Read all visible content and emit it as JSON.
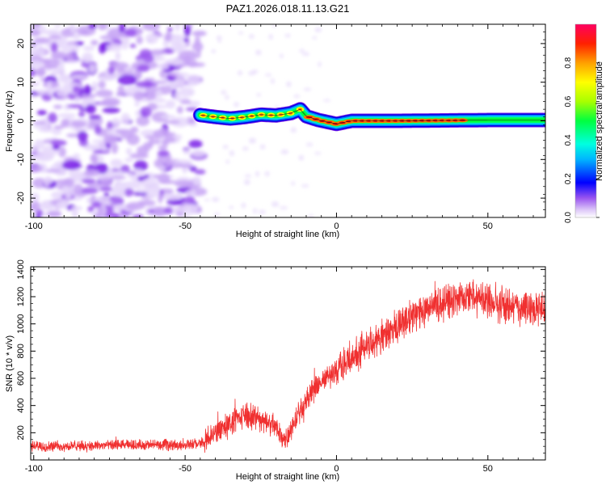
{
  "title": "PAZ1.2026.018.11.13.G21",
  "chart_data": [
    {
      "type": "heatmap",
      "name": "spectrogram",
      "xlabel": "Height of straight line (km)",
      "ylabel": "Frequency (Hz)",
      "xlim": [
        -101,
        69
      ],
      "ylim": [
        -25,
        25
      ],
      "xticks": [
        -100,
        -50,
        0,
        50
      ],
      "xtick_labels": [
        "-100",
        "-50",
        "0",
        "50"
      ],
      "yticks": [
        20,
        10,
        0,
        -10,
        -20
      ],
      "ytick_labels": [
        "20",
        "10",
        "0",
        "-10",
        "-20"
      ],
      "noise_region_x": [
        -101,
        -45
      ],
      "ridge": [
        {
          "x": -45,
          "f": 1.5
        },
        {
          "x": -40,
          "f": 1.0
        },
        {
          "x": -35,
          "f": 0.6
        },
        {
          "x": -30,
          "f": 1.0
        },
        {
          "x": -25,
          "f": 1.6
        },
        {
          "x": -20,
          "f": 1.4
        },
        {
          "x": -15,
          "f": 2.0
        },
        {
          "x": -12,
          "f": 3.0
        },
        {
          "x": -10,
          "f": 1.2
        },
        {
          "x": -6,
          "f": 0.2
        },
        {
          "x": 0,
          "f": -0.8
        },
        {
          "x": 5,
          "f": 0.0
        },
        {
          "x": 20,
          "f": 0.0
        },
        {
          "x": 50,
          "f": 0.2
        },
        {
          "x": 69,
          "f": 0.2
        }
      ],
      "colorbar": {
        "label": "Normalized spectral amplitude",
        "range": [
          0,
          1
        ],
        "ticks": [
          0.0,
          0.2,
          0.4,
          0.6,
          0.8
        ],
        "tick_labels": [
          "0.0",
          "0.2",
          "0.4",
          "0.6",
          "0.8"
        ]
      }
    },
    {
      "type": "line",
      "name": "snr",
      "xlabel": "Height of straight line (km)",
      "ylabel": "SNR (10 * v/v)",
      "xlim": [
        -101,
        69
      ],
      "ylim": [
        0,
        1420
      ],
      "xticks": [
        -100,
        -50,
        0,
        50
      ],
      "xtick_labels": [
        "-100",
        "-50",
        "0",
        "50"
      ],
      "yticks": [
        200,
        400,
        600,
        800,
        1000,
        1200,
        1400
      ],
      "ytick_labels": [
        "200",
        "400",
        "600",
        "800",
        "1000",
        "1200",
        "1400"
      ],
      "color": "#f03030",
      "trend_x": [
        -101,
        -90,
        -80,
        -70,
        -60,
        -50,
        -44,
        -40,
        -35,
        -30,
        -25,
        -20,
        -17,
        -15,
        -13,
        -10,
        -5,
        0,
        5,
        10,
        15,
        20,
        25,
        30,
        35,
        40,
        45,
        50,
        55,
        60,
        65,
        69
      ],
      "trend_y": [
        100,
        100,
        105,
        110,
        110,
        110,
        125,
        200,
        270,
        330,
        300,
        240,
        150,
        230,
        330,
        440,
        570,
        660,
        750,
        840,
        920,
        980,
        1060,
        1120,
        1150,
        1190,
        1200,
        1160,
        1140,
        1120,
        1110,
        1110
      ]
    }
  ]
}
